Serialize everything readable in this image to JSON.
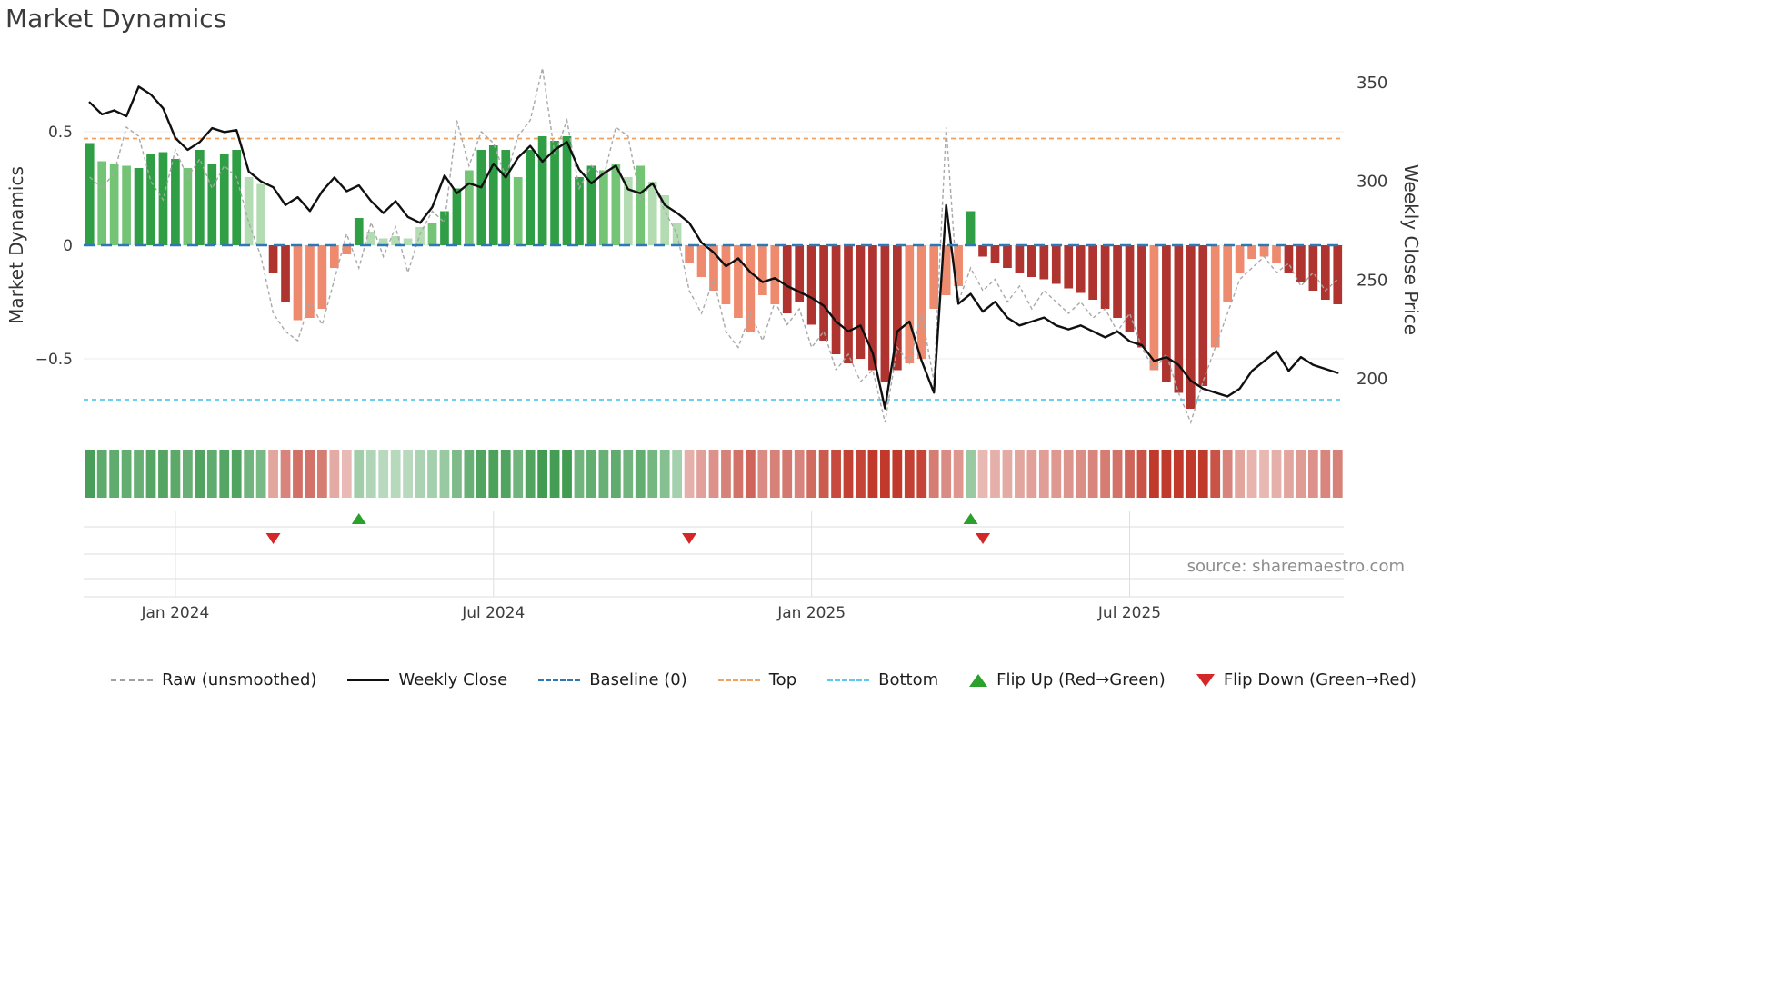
{
  "title": "Market Dynamics",
  "source": "source: sharemaestro.com",
  "axes": {
    "left_label": "Market Dynamics",
    "right_label": "Weekly Close Price",
    "left_ticks": [
      {
        "label": "0.5",
        "value": 0.5
      },
      {
        "label": "0",
        "value": 0
      },
      {
        "label": "−0.5",
        "value": -0.5
      }
    ],
    "right_ticks": [
      {
        "label": "350",
        "value": 350
      },
      {
        "label": "300",
        "value": 300
      },
      {
        "label": "250",
        "value": 250
      },
      {
        "label": "200",
        "value": 200
      }
    ]
  },
  "legend": {
    "items": [
      {
        "id": "raw",
        "label": "Raw (unsmoothed)"
      },
      {
        "id": "close",
        "label": "Weekly Close"
      },
      {
        "id": "baseline",
        "label": "Baseline (0)"
      },
      {
        "id": "top",
        "label": "Top"
      },
      {
        "id": "bottom",
        "label": "Bottom"
      },
      {
        "id": "flip-up",
        "label": "Flip Up (Red→Green)"
      },
      {
        "id": "flip-down",
        "label": "Flip Down (Green→Red)"
      }
    ]
  },
  "colors": {
    "green_strong": "#2f9e44",
    "green_mid": "#74c476",
    "green_light": "#b3dcb3",
    "red_salmon": "#ee8a6e",
    "red_dark": "#af332e",
    "heat_green": "#2e9140",
    "heat_red": "#c0392b",
    "line_close": "#101010",
    "line_raw": "#a8a8a8",
    "baseline": "#2d78b5",
    "top_line": "#f2a25c",
    "bottom_line": "#5bc8ee",
    "flip_up": "#2ca02c",
    "flip_down": "#d62728",
    "grid": "#ededed",
    "marker_grid": "#dedede",
    "tick_text": "#3d3d3d"
  },
  "chart_data": {
    "type": "bar+line",
    "title": "Market Dynamics",
    "ylabel_left": "Market Dynamics",
    "ylabel_right": "Weekly Close Price",
    "x_unit": "week",
    "left_axis_range": [
      -0.84,
      0.82
    ],
    "right_axis_range": [
      171,
      362
    ],
    "baseline": 0,
    "top_line": 0.47,
    "bottom_line": -0.68,
    "x_ticks": [
      {
        "index": 7,
        "label": "Jan 2024"
      },
      {
        "index": 33,
        "label": "Jul 2024"
      },
      {
        "index": 59,
        "label": "Jan 2025"
      },
      {
        "index": 85,
        "label": "Jul 2025"
      }
    ],
    "series": {
      "dynamics": [
        0.45,
        0.37,
        0.36,
        0.35,
        0.34,
        0.4,
        0.41,
        0.38,
        0.34,
        0.42,
        0.36,
        0.4,
        0.42,
        0.3,
        0.27,
        -0.12,
        -0.25,
        -0.33,
        -0.32,
        -0.28,
        -0.1,
        -0.04,
        0.12,
        0.06,
        0.03,
        0.04,
        0.03,
        0.08,
        0.1,
        0.15,
        0.25,
        0.33,
        0.42,
        0.44,
        0.42,
        0.3,
        0.42,
        0.48,
        0.46,
        0.48,
        0.3,
        0.35,
        0.33,
        0.36,
        0.3,
        0.35,
        0.28,
        0.22,
        0.1,
        -0.08,
        -0.14,
        -0.2,
        -0.26,
        -0.32,
        -0.38,
        -0.22,
        -0.26,
        -0.3,
        -0.25,
        -0.35,
        -0.42,
        -0.48,
        -0.52,
        -0.5,
        -0.55,
        -0.6,
        -0.55,
        -0.52,
        -0.5,
        -0.28,
        -0.22,
        -0.18,
        0.15,
        -0.05,
        -0.08,
        -0.1,
        -0.12,
        -0.14,
        -0.15,
        -0.17,
        -0.19,
        -0.21,
        -0.24,
        -0.28,
        -0.32,
        -0.38,
        -0.45,
        -0.55,
        -0.6,
        -0.65,
        -0.72,
        -0.62,
        -0.45,
        -0.25,
        -0.12,
        -0.06,
        -0.05,
        -0.08,
        -0.12,
        -0.16,
        -0.2,
        -0.24,
        -0.26
      ],
      "shade": [
        "g1",
        "g2",
        "g2",
        "g2",
        "g1",
        "g1",
        "g1",
        "g1",
        "g2",
        "g1",
        "g1",
        "g1",
        "g1",
        "g3",
        "g3",
        "r2",
        "r2",
        "r1",
        "r1",
        "r1",
        "r1",
        "r1",
        "g1",
        "g3",
        "g3",
        "g3",
        "g3",
        "g3",
        "g2",
        "g1",
        "g1",
        "g2",
        "g1",
        "g1",
        "g1",
        "g2",
        "g1",
        "g1",
        "g1",
        "g1",
        "g1",
        "g1",
        "g2",
        "g2",
        "g3",
        "g2",
        "g3",
        "g3",
        "g3",
        "r1",
        "r1",
        "r1",
        "r1",
        "r1",
        "r1",
        "r1",
        "r1",
        "r2",
        "r2",
        "r2",
        "r2",
        "r2",
        "r2",
        "r2",
        "r2",
        "r2",
        "r2",
        "r1",
        "r1",
        "r1",
        "r1",
        "r1",
        "g1",
        "r2",
        "r2",
        "r2",
        "r2",
        "r2",
        "r2",
        "r2",
        "r2",
        "r2",
        "r2",
        "r2",
        "r2",
        "r2",
        "r2",
        "r1",
        "r2",
        "r2",
        "r2",
        "r2",
        "r1",
        "r1",
        "r1",
        "r1",
        "r1",
        "r1",
        "r2",
        "r2",
        "r2",
        "r2",
        "r2"
      ],
      "weekly_close": [
        340,
        334,
        336,
        333,
        348,
        344,
        337,
        322,
        316,
        320,
        327,
        325,
        326,
        305,
        300,
        297,
        288,
        292,
        285,
        295,
        302,
        295,
        298,
        290,
        284,
        290,
        282,
        279,
        287,
        303,
        294,
        299,
        297,
        309,
        302,
        312,
        318,
        310,
        316,
        320,
        306,
        299,
        304,
        308,
        296,
        294,
        299,
        288,
        284,
        279,
        269,
        264,
        257,
        261,
        254,
        249,
        251,
        247,
        244,
        241,
        237,
        229,
        224,
        227,
        213,
        185,
        224,
        229,
        209,
        193,
        288,
        238,
        243,
        234,
        239,
        231,
        227,
        229,
        231,
        227,
        225,
        227,
        224,
        221,
        224,
        219,
        217,
        209,
        211,
        207,
        199,
        195,
        193,
        191,
        195,
        204,
        209,
        214,
        204,
        211,
        207,
        205,
        203
      ],
      "raw": [
        0.3,
        0.25,
        0.32,
        0.52,
        0.48,
        0.28,
        0.2,
        0.42,
        0.3,
        0.38,
        0.25,
        0.35,
        0.3,
        0.1,
        -0.05,
        -0.3,
        -0.38,
        -0.42,
        -0.25,
        -0.35,
        -0.15,
        0.05,
        -0.1,
        0.1,
        -0.05,
        0.08,
        -0.12,
        0.05,
        0.15,
        0.1,
        0.55,
        0.35,
        0.5,
        0.45,
        0.3,
        0.48,
        0.55,
        0.78,
        0.4,
        0.55,
        0.25,
        0.35,
        0.3,
        0.52,
        0.48,
        0.2,
        0.28,
        0.15,
        0.05,
        -0.2,
        -0.3,
        -0.15,
        -0.38,
        -0.45,
        -0.3,
        -0.42,
        -0.25,
        -0.35,
        -0.28,
        -0.45,
        -0.38,
        -0.55,
        -0.48,
        -0.6,
        -0.55,
        -0.78,
        -0.45,
        -0.52,
        -0.3,
        -0.6,
        0.52,
        -0.25,
        -0.1,
        -0.2,
        -0.15,
        -0.25,
        -0.18,
        -0.28,
        -0.2,
        -0.25,
        -0.3,
        -0.25,
        -0.32,
        -0.28,
        -0.38,
        -0.3,
        -0.45,
        -0.55,
        -0.48,
        -0.65,
        -0.78,
        -0.6,
        -0.45,
        -0.3,
        -0.15,
        -0.1,
        -0.05,
        -0.12,
        -0.08,
        -0.18,
        -0.12,
        -0.2,
        -0.15
      ]
    },
    "flips": [
      {
        "index": 15,
        "dir": "down"
      },
      {
        "index": 22,
        "dir": "up"
      },
      {
        "index": 49,
        "dir": "down"
      },
      {
        "index": 72,
        "dir": "up"
      },
      {
        "index": 73,
        "dir": "down"
      }
    ]
  }
}
